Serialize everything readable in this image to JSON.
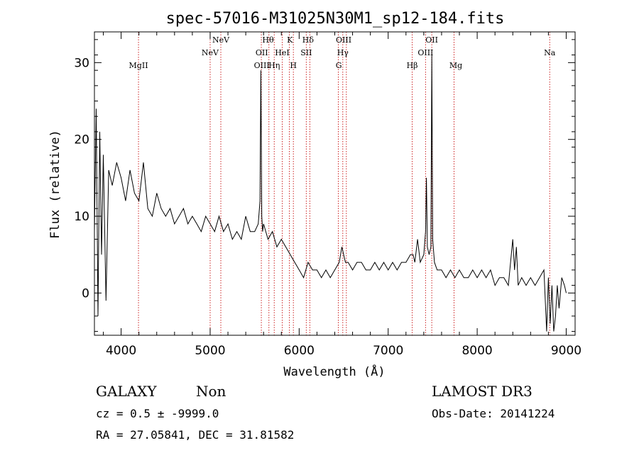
{
  "chart_data": {
    "type": "line",
    "title": "spec-57016-M31025N30M1_sp12-184.fits",
    "xlabel": "Wavelength (Å)",
    "ylabel": "Flux (relative)",
    "xlim": [
      3700,
      9100
    ],
    "ylim": [
      -5.5,
      34
    ],
    "x_ticks": [
      4000,
      5000,
      6000,
      7000,
      8000,
      9000
    ],
    "y_ticks": [
      0,
      10,
      20,
      30
    ],
    "grid": false,
    "legend": "none",
    "series": [
      {
        "x": [
          3700,
          3720,
          3740,
          3760,
          3780,
          3800,
          3830,
          3860,
          3900,
          3950,
          4000,
          4050,
          4100,
          4150,
          4200,
          4250,
          4300,
          4350,
          4400,
          4450,
          4500,
          4550,
          4600,
          4650,
          4700,
          4750,
          4800,
          4850,
          4900,
          4950,
          5000,
          5050,
          5100,
          5150,
          5200,
          5250,
          5300,
          5350,
          5400,
          5450,
          5500,
          5540,
          5560,
          5570,
          5580,
          5590,
          5600,
          5650,
          5700,
          5750,
          5800,
          5850,
          5900,
          5950,
          6000,
          6050,
          6100,
          6150,
          6200,
          6250,
          6300,
          6350,
          6400,
          6450,
          6480,
          6500,
          6520,
          6550,
          6600,
          6650,
          6700,
          6750,
          6800,
          6850,
          6900,
          6950,
          7000,
          7050,
          7100,
          7150,
          7200,
          7250,
          7280,
          7300,
          7330,
          7360,
          7400,
          7420,
          7430,
          7440,
          7460,
          7480,
          7490,
          7500,
          7520,
          7550,
          7600,
          7650,
          7700,
          7750,
          7800,
          7850,
          7900,
          7950,
          8000,
          8050,
          8100,
          8150,
          8200,
          8250,
          8300,
          8350,
          8400,
          8420,
          8440,
          8460,
          8500,
          8550,
          8600,
          8650,
          8700,
          8750,
          8780,
          8800,
          8820,
          8840,
          8860,
          8880,
          8900,
          8920,
          8950,
          8980,
          9000
        ],
        "y": [
          8,
          24,
          -3,
          21,
          5,
          18,
          -1,
          16,
          14,
          17,
          15,
          12,
          16,
          13,
          12,
          17,
          11,
          10,
          13,
          11,
          10,
          11,
          9,
          10,
          11,
          9,
          10,
          9,
          8,
          10,
          9,
          8,
          10,
          8,
          9,
          7,
          8,
          7,
          10,
          8,
          8,
          9,
          12,
          29,
          10,
          8,
          9,
          7,
          8,
          6,
          7,
          6,
          5,
          4,
          3,
          2,
          4,
          3,
          3,
          2,
          3,
          2,
          3,
          4,
          6,
          5,
          4,
          4,
          3,
          4,
          4,
          3,
          3,
          4,
          3,
          4,
          3,
          4,
          3,
          4,
          4,
          5,
          5,
          4,
          7,
          4,
          5,
          8,
          15,
          6,
          5,
          6,
          31,
          7,
          4,
          3,
          3,
          2,
          3,
          2,
          3,
          2,
          2,
          3,
          2,
          3,
          2,
          3,
          1,
          2,
          2,
          1,
          7,
          3,
          6,
          1,
          2,
          1,
          2,
          1,
          2,
          3,
          -5,
          2,
          -4,
          1,
          -5,
          -3,
          1,
          -2,
          2,
          1,
          0
        ]
      }
    ],
    "spectral_lines": [
      {
        "label": "MgII",
        "x": 4195,
        "row": 2
      },
      {
        "label": "NeV",
        "x": 5000,
        "row": 1
      },
      {
        "label": "NeV",
        "x": 5120,
        "row": 0
      },
      {
        "label": "OII",
        "x": 5580,
        "row": 1
      },
      {
        "label": "OIII",
        "x": 5580,
        "row": 2
      },
      {
        "label": "Hθ",
        "x": 5650,
        "row": 0
      },
      {
        "label": "Hη",
        "x": 5720,
        "row": 2
      },
      {
        "label": "HeI",
        "x": 5810,
        "row": 1
      },
      {
        "label": "K",
        "x": 5895,
        "row": 0
      },
      {
        "label": "H",
        "x": 5935,
        "row": 2
      },
      {
        "label": "Hδ",
        "x": 6100,
        "row": 0
      },
      {
        "label": "SII",
        "x": 6080,
        "row": 1
      },
      {
        "label": "OIII",
        "x": 6500,
        "row": 0
      },
      {
        "label": "Hγ",
        "x": 6490,
        "row": 1
      },
      {
        "label": "G",
        "x": 6445,
        "row": 2
      },
      {
        "label": "Hβ",
        "x": 7270,
        "row": 2
      },
      {
        "label": "OII",
        "x": 7490,
        "row": 0
      },
      {
        "label": "OIII",
        "x": 7420,
        "row": 1
      },
      {
        "label": "Mg",
        "x": 7760,
        "row": 2
      },
      {
        "label": "Na",
        "x": 8815,
        "row": 1
      }
    ],
    "line_markers": [
      4195,
      5000,
      5120,
      5575,
      5660,
      5720,
      5810,
      5890,
      5935,
      6080,
      6120,
      6440,
      6490,
      6530,
      7270,
      7420,
      7490,
      7740,
      8815
    ],
    "line_color": "#cc2222"
  },
  "footer": {
    "object_class": "GALAXY",
    "subclass": "Non",
    "survey": "LAMOST DR3",
    "cz": "cz = 0.5 ± -9999.0",
    "obs_date": "Obs-Date: 20141224",
    "coords": "RA =  27.05841, DEC =  31.81582"
  }
}
